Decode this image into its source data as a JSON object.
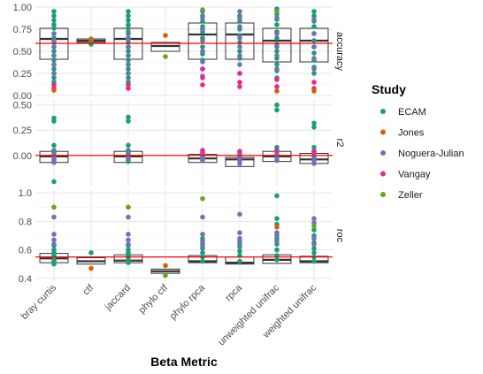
{
  "chart_data": {
    "type": "box",
    "xlabel": "Beta Metric",
    "categories": [
      "bray curtis",
      "ctf",
      "jaccard",
      "phylo ctf",
      "phylo rpca",
      "rpca",
      "unweighted unifrac",
      "weighted unifrac"
    ],
    "legend": {
      "title": "Study",
      "placement": "right",
      "entries": [
        {
          "name": "ECAM",
          "color": "#1B9E77"
        },
        {
          "name": "Jones",
          "color": "#D95F02"
        },
        {
          "name": "Noguera-Julian",
          "color": "#7570B3"
        },
        {
          "name": "Vangay",
          "color": "#E7298A"
        },
        {
          "name": "Zeller",
          "color": "#66A61E"
        }
      ]
    },
    "panels": [
      {
        "label": "accuracy",
        "ylim": [
          0,
          1
        ],
        "yticks": [
          0.0,
          0.25,
          0.5,
          0.75,
          1.0
        ],
        "ytick_labels": [
          "0.00",
          "0.25",
          "0.50",
          "0.75",
          "1.00"
        ],
        "reference_line": 0.59,
        "boxes": [
          {
            "category": "bray curtis",
            "q1": 0.41,
            "median": 0.64,
            "q3": 0.76
          },
          {
            "category": "ctf",
            "q1": 0.6,
            "median": 0.62,
            "q3": 0.64
          },
          {
            "category": "jaccard",
            "q1": 0.41,
            "median": 0.64,
            "q3": 0.76
          },
          {
            "category": "phylo ctf",
            "q1": 0.5,
            "median": 0.56,
            "q3": 0.6
          },
          {
            "category": "phylo rpca",
            "q1": 0.41,
            "median": 0.69,
            "q3": 0.82
          },
          {
            "category": "rpca",
            "q1": 0.41,
            "median": 0.69,
            "q3": 0.82
          },
          {
            "category": "unweighted unifrac",
            "q1": 0.38,
            "median": 0.62,
            "q3": 0.76
          },
          {
            "category": "weighted unifrac",
            "q1": 0.38,
            "median": 0.62,
            "q3": 0.76
          }
        ],
        "points": [
          {
            "category": "bray curtis",
            "study": "ECAM",
            "values": [
              0.95,
              0.9,
              0.85,
              0.8,
              0.76,
              0.7,
              0.65,
              0.6,
              0.55,
              0.5,
              0.45,
              0.4,
              0.35,
              0.3,
              0.25,
              0.2,
              0.15
            ]
          },
          {
            "category": "bray curtis",
            "study": "Noguera-Julian",
            "values": [
              0.7,
              0.62,
              0.55,
              0.45,
              0.35,
              0.25
            ]
          },
          {
            "category": "bray curtis",
            "study": "Vangay",
            "values": [
              0.12,
              0.08
            ]
          },
          {
            "category": "bray curtis",
            "study": "Jones",
            "values": [
              0.06
            ]
          },
          {
            "category": "ctf",
            "study": "ECAM",
            "values": [
              0.64,
              0.62,
              0.61,
              0.6,
              0.58
            ]
          },
          {
            "category": "ctf",
            "study": "Jones",
            "values": [
              0.63
            ]
          },
          {
            "category": "jaccard",
            "study": "ECAM",
            "values": [
              0.95,
              0.9,
              0.85,
              0.8,
              0.76,
              0.7,
              0.65,
              0.6,
              0.55,
              0.5,
              0.45,
              0.4,
              0.35,
              0.3,
              0.25,
              0.2,
              0.15
            ]
          },
          {
            "category": "jaccard",
            "study": "Noguera-Julian",
            "values": [
              0.72,
              0.64,
              0.55,
              0.45,
              0.35,
              0.25
            ]
          },
          {
            "category": "jaccard",
            "study": "Vangay",
            "values": [
              0.12,
              0.08
            ]
          },
          {
            "category": "phylo ctf",
            "study": "Jones",
            "values": [
              0.68
            ]
          },
          {
            "category": "phylo ctf",
            "study": "Zeller",
            "values": [
              0.44
            ]
          },
          {
            "category": "phylo rpca",
            "study": "ECAM",
            "values": [
              0.9,
              0.84,
              0.78,
              0.72,
              0.65,
              0.55,
              0.47,
              0.4
            ]
          },
          {
            "category": "phylo rpca",
            "study": "Noguera-Julian",
            "values": [
              0.95,
              0.88,
              0.75,
              0.62,
              0.5,
              0.38,
              0.3,
              0.22
            ]
          },
          {
            "category": "phylo rpca",
            "study": "Vangay",
            "values": [
              0.3,
              0.2,
              0.12
            ]
          },
          {
            "category": "phylo rpca",
            "study": "Zeller",
            "values": [
              0.97
            ]
          },
          {
            "category": "rpca",
            "study": "ECAM",
            "values": [
              0.9,
              0.84,
              0.75,
              0.68,
              0.6,
              0.5,
              0.42
            ]
          },
          {
            "category": "rpca",
            "study": "Noguera-Julian",
            "values": [
              0.95,
              0.88,
              0.78,
              0.65,
              0.55,
              0.45,
              0.35,
              0.25
            ]
          },
          {
            "category": "rpca",
            "study": "Vangay",
            "values": [
              0.25,
              0.15,
              0.1
            ]
          },
          {
            "category": "unweighted unifrac",
            "study": "ECAM",
            "values": [
              0.98,
              0.92,
              0.86,
              0.8,
              0.72,
              0.65,
              0.58,
              0.5,
              0.42,
              0.35,
              0.28,
              0.2
            ]
          },
          {
            "category": "unweighted unifrac",
            "study": "Noguera-Julian",
            "values": [
              0.88,
              0.7,
              0.55,
              0.45,
              0.3
            ]
          },
          {
            "category": "unweighted unifrac",
            "study": "Vangay",
            "values": [
              0.18,
              0.1
            ]
          },
          {
            "category": "unweighted unifrac",
            "study": "Jones",
            "values": [
              0.05
            ]
          },
          {
            "category": "unweighted unifrac",
            "study": "Zeller",
            "values": [
              0.95
            ]
          },
          {
            "category": "weighted unifrac",
            "study": "ECAM",
            "values": [
              0.95,
              0.9,
              0.84,
              0.78,
              0.7,
              0.62,
              0.55,
              0.48,
              0.4,
              0.32,
              0.25
            ]
          },
          {
            "category": "weighted unifrac",
            "study": "Noguera-Julian",
            "values": [
              0.86,
              0.7,
              0.55,
              0.42,
              0.3
            ]
          },
          {
            "category": "weighted unifrac",
            "study": "Vangay",
            "values": [
              0.15,
              0.08
            ]
          },
          {
            "category": "weighted unifrac",
            "study": "Jones",
            "values": [
              0.05
            ]
          }
        ]
      },
      {
        "label": "r2",
        "ylim": [
          -0.3,
          0.55
        ],
        "yticks": [
          0.0,
          0.25,
          0.5
        ],
        "ytick_labels": [
          "0.00",
          "0.25",
          "0.50"
        ],
        "reference_line": 0.0,
        "boxes": [
          {
            "category": "bray curtis",
            "q1": -0.07,
            "median": -0.01,
            "q3": 0.04
          },
          {
            "category": "jaccard",
            "q1": -0.07,
            "median": -0.01,
            "q3": 0.04
          },
          {
            "category": "phylo rpca",
            "q1": -0.07,
            "median": -0.03,
            "q3": 0.01
          },
          {
            "category": "rpca",
            "q1": -0.11,
            "median": -0.04,
            "q3": -0.02
          },
          {
            "category": "unweighted unifrac",
            "q1": -0.06,
            "median": -0.01,
            "q3": 0.04
          },
          {
            "category": "weighted unifrac",
            "q1": -0.08,
            "median": -0.04,
            "q3": 0.02
          }
        ],
        "points": [
          {
            "category": "bray curtis",
            "study": "ECAM",
            "values": [
              0.37,
              0.34,
              0.1,
              0.05,
              0.02,
              -0.02,
              -0.06,
              -0.26
            ]
          },
          {
            "category": "bray curtis",
            "study": "Noguera-Julian",
            "values": [
              0.03,
              -0.01,
              -0.04,
              -0.07
            ]
          },
          {
            "category": "jaccard",
            "study": "ECAM",
            "values": [
              0.38,
              0.34,
              0.1,
              0.05,
              0.02,
              -0.02,
              -0.06
            ]
          },
          {
            "category": "jaccard",
            "study": "Noguera-Julian",
            "values": [
              0.03,
              -0.01,
              -0.04
            ]
          },
          {
            "category": "phylo rpca",
            "study": "Vangay",
            "values": [
              0.05,
              0.03,
              0.01,
              -0.02
            ]
          },
          {
            "category": "phylo rpca",
            "study": "Noguera-Julian",
            "values": [
              0.0,
              -0.03,
              -0.05
            ]
          },
          {
            "category": "rpca",
            "study": "Vangay",
            "values": [
              0.04,
              0.02,
              -0.02
            ]
          },
          {
            "category": "rpca",
            "study": "Noguera-Julian",
            "values": [
              0.0,
              -0.05,
              -0.08
            ]
          },
          {
            "category": "unweighted unifrac",
            "study": "ECAM",
            "values": [
              0.5,
              0.45,
              0.08,
              0.04,
              0.0
            ]
          },
          {
            "category": "unweighted unifrac",
            "study": "Noguera-Julian",
            "values": [
              0.03,
              -0.02,
              -0.05
            ]
          },
          {
            "category": "unweighted unifrac",
            "study": "Vangay",
            "values": [
              0.05
            ]
          },
          {
            "category": "weighted unifrac",
            "study": "ECAM",
            "values": [
              0.32,
              0.28,
              0.08,
              0.04
            ]
          },
          {
            "category": "weighted unifrac",
            "study": "Noguera-Julian",
            "values": [
              0.02,
              -0.02,
              -0.05,
              -0.08
            ]
          },
          {
            "category": "weighted unifrac",
            "study": "Vangay",
            "values": [
              0.04
            ]
          }
        ]
      },
      {
        "label": "roc",
        "ylim": [
          0.38,
          1.02
        ],
        "yticks": [
          0.4,
          0.6,
          0.8,
          1.0
        ],
        "ytick_labels": [
          "0.4",
          "0.6",
          "0.8",
          "1.0"
        ],
        "reference_line": 0.55,
        "boxes": [
          {
            "category": "bray curtis",
            "q1": 0.51,
            "median": 0.54,
            "q3": 0.575
          },
          {
            "category": "ctf",
            "q1": 0.5,
            "median": 0.52,
            "q3": 0.545
          },
          {
            "category": "jaccard",
            "q1": 0.51,
            "median": 0.525,
            "q3": 0.565
          },
          {
            "category": "phylo ctf",
            "q1": 0.435,
            "median": 0.45,
            "q3": 0.465
          },
          {
            "category": "phylo rpca",
            "q1": 0.51,
            "median": 0.52,
            "q3": 0.56
          },
          {
            "category": "rpca",
            "q1": 0.5,
            "median": 0.51,
            "q3": 0.55
          },
          {
            "category": "unweighted unifrac",
            "q1": 0.505,
            "median": 0.53,
            "q3": 0.565
          },
          {
            "category": "weighted unifrac",
            "q1": 0.51,
            "median": 0.52,
            "q3": 0.555
          }
        ],
        "points": [
          {
            "category": "bray curtis",
            "study": "ECAM",
            "values": [
              0.63,
              0.6,
              0.58,
              0.56,
              0.55,
              0.53,
              0.52,
              0.51,
              0.5
            ]
          },
          {
            "category": "bray curtis",
            "study": "Noguera-Julian",
            "values": [
              0.83,
              0.71,
              0.67,
              0.64
            ]
          },
          {
            "category": "bray curtis",
            "study": "Zeller",
            "values": [
              0.9
            ]
          },
          {
            "category": "ctf",
            "study": "ECAM",
            "values": [
              0.58
            ]
          },
          {
            "category": "ctf",
            "study": "Jones",
            "values": [
              0.47
            ]
          },
          {
            "category": "jaccard",
            "study": "ECAM",
            "values": [
              0.63,
              0.6,
              0.58,
              0.56,
              0.55,
              0.53,
              0.52,
              0.51
            ]
          },
          {
            "category": "jaccard",
            "study": "Noguera-Julian",
            "values": [
              0.83,
              0.71,
              0.67,
              0.64
            ]
          },
          {
            "category": "jaccard",
            "study": "Zeller",
            "values": [
              0.9
            ]
          },
          {
            "category": "phylo ctf",
            "study": "Jones",
            "values": [
              0.49
            ]
          },
          {
            "category": "phylo ctf",
            "study": "Zeller",
            "values": [
              0.42
            ]
          },
          {
            "category": "phylo rpca",
            "study": "ECAM",
            "values": [
              0.68,
              0.64,
              0.61,
              0.58,
              0.55,
              0.52
            ]
          },
          {
            "category": "phylo rpca",
            "study": "Noguera-Julian",
            "values": [
              0.83,
              0.71,
              0.66,
              0.62
            ]
          },
          {
            "category": "phylo rpca",
            "study": "Zeller",
            "values": [
              0.96
            ]
          },
          {
            "category": "rpca",
            "study": "ECAM",
            "values": [
              0.66,
              0.62,
              0.59,
              0.56,
              0.52
            ]
          },
          {
            "category": "rpca",
            "study": "Noguera-Julian",
            "values": [
              0.85,
              0.72,
              0.68,
              0.64
            ]
          },
          {
            "category": "unweighted unifrac",
            "study": "ECAM",
            "values": [
              0.98,
              0.82,
              0.78,
              0.72,
              0.68,
              0.64,
              0.6,
              0.56,
              0.53
            ]
          },
          {
            "category": "unweighted unifrac",
            "study": "Noguera-Julian",
            "values": [
              0.72,
              0.7,
              0.66
            ]
          },
          {
            "category": "unweighted unifrac",
            "study": "Jones",
            "values": [
              0.76
            ]
          },
          {
            "category": "weighted unifrac",
            "study": "ECAM",
            "values": [
              0.74,
              0.7,
              0.65,
              0.61,
              0.58,
              0.55,
              0.52
            ]
          },
          {
            "category": "weighted unifrac",
            "study": "Noguera-Julian",
            "values": [
              0.82,
              0.79,
              0.68,
              0.64
            ]
          },
          {
            "category": "weighted unifrac",
            "study": "Zeller",
            "values": [
              0.77
            ]
          }
        ]
      }
    ]
  }
}
